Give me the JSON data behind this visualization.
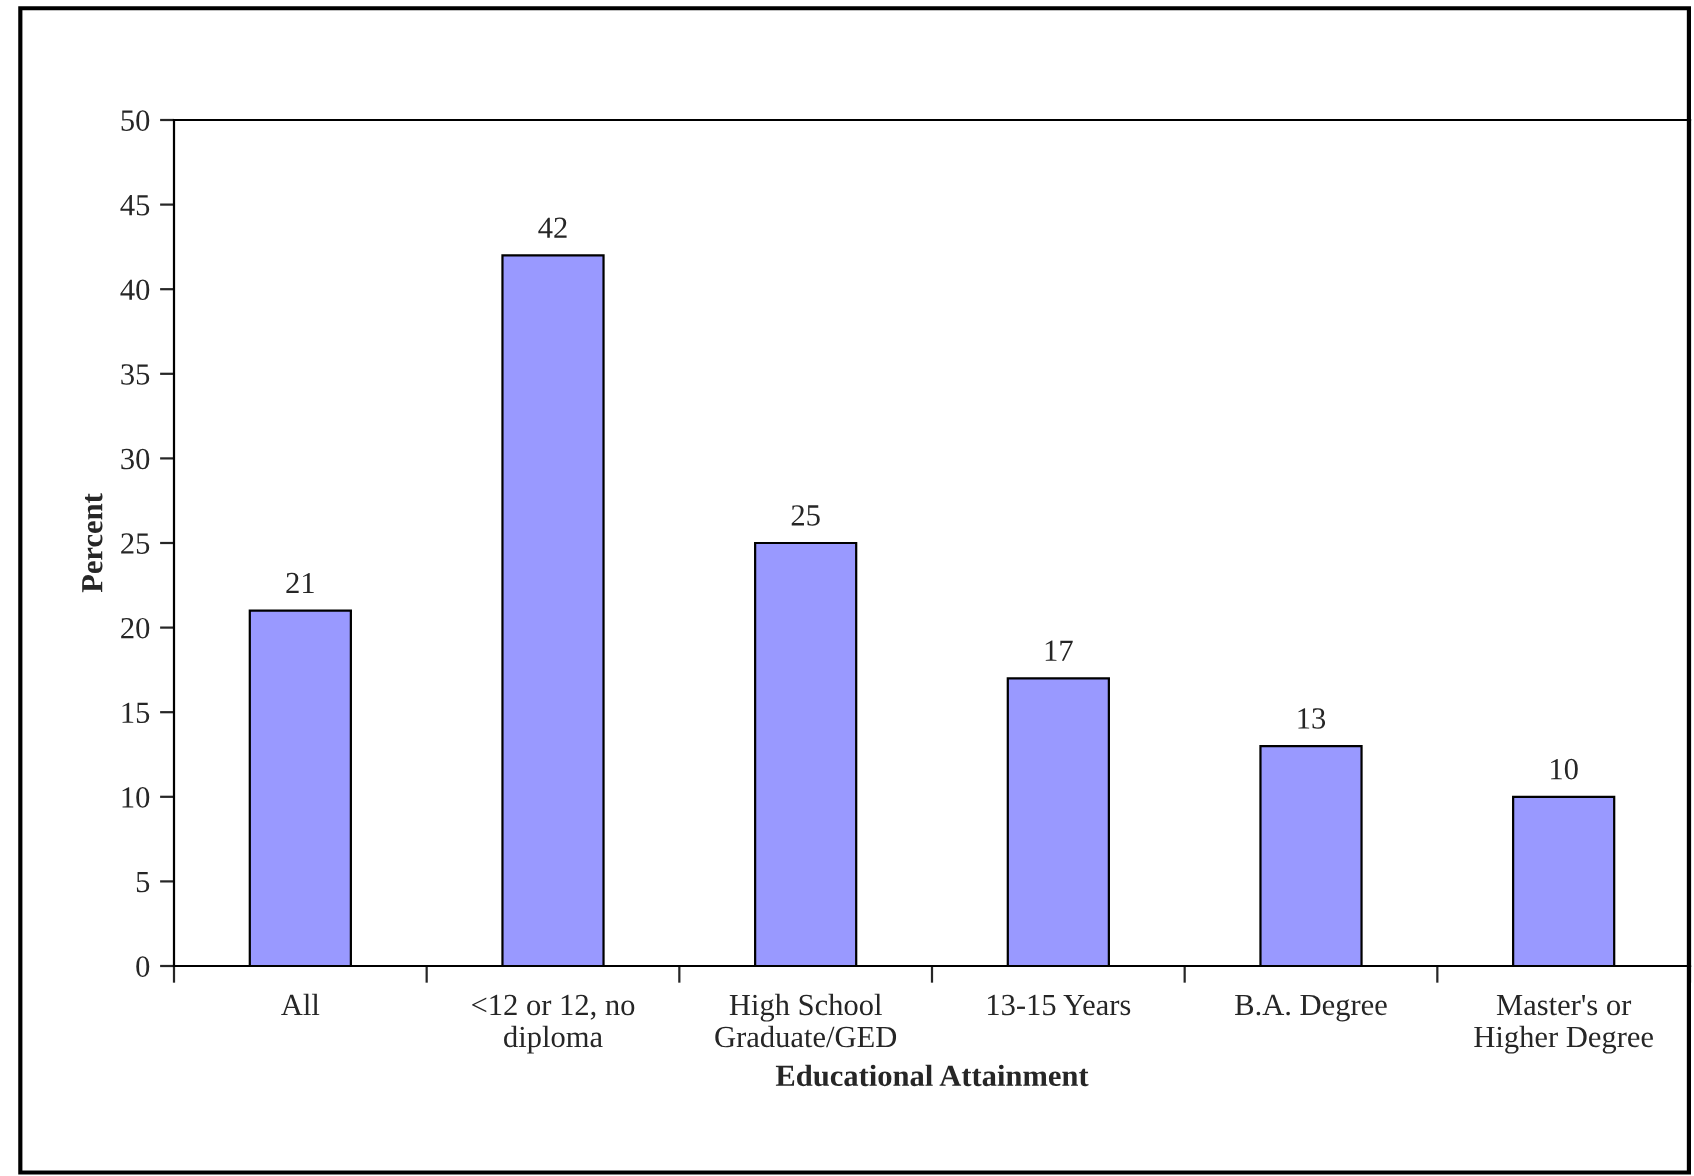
{
  "chart_data": {
    "type": "bar",
    "xlabel": "Educational Attainment",
    "ylabel": "Percent",
    "categories": [
      "All",
      "<12 or 12, no\ndiploma",
      "High School\nGraduate/GED",
      "13-15 Years",
      "B.A. Degree",
      "Master's or\nHigher Degree"
    ],
    "values": [
      21,
      42,
      25,
      17,
      13,
      10
    ],
    "color": "#9999ff",
    "ylim": [
      0,
      50
    ],
    "yticks": [
      0,
      5,
      10,
      15,
      20,
      25,
      30,
      35,
      40,
      45,
      50
    ],
    "data_labels": true,
    "grid": false,
    "legend": false
  }
}
